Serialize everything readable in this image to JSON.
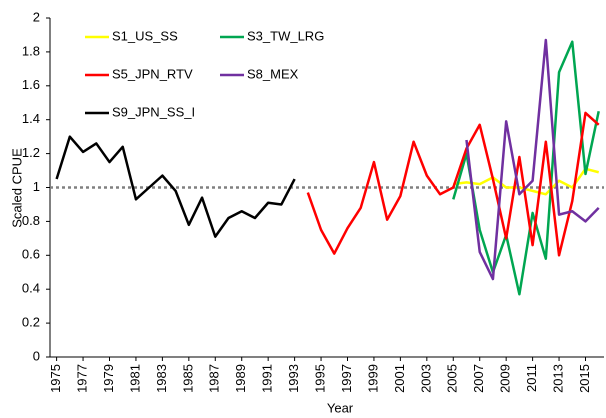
{
  "chart_data": {
    "type": "line",
    "x_label": "Year",
    "y_label": "Scaled CPUE",
    "xlim": [
      1974.5,
      2016.4
    ],
    "ylim": [
      0,
      2
    ],
    "xticks": [
      1975,
      1977,
      1979,
      1981,
      1983,
      1985,
      1987,
      1989,
      1991,
      1993,
      1995,
      1997,
      1999,
      2001,
      2003,
      2005,
      2007,
      2009,
      2011,
      2013,
      2015
    ],
    "yticks": [
      0,
      0.2,
      0.4,
      0.6,
      0.8,
      1,
      1.2,
      1.4,
      1.6,
      1.8,
      2
    ],
    "grid": false,
    "legend": "upper left",
    "reference_line": 1,
    "series": [
      {
        "name": "S1_US_SS",
        "color": "#ffff00",
        "x": [
          2005,
          2006,
          2007,
          2008,
          2009,
          2010,
          2011,
          2012,
          2013,
          2014,
          2015,
          2016
        ],
        "values": [
          1.02,
          1.03,
          1.02,
          1.06,
          1.0,
          1.0,
          0.98,
          0.96,
          1.04,
          1.0,
          1.11,
          1.09
        ]
      },
      {
        "name": "S3_TW_LRG",
        "color": "#00a651",
        "x": [
          2005,
          2006,
          2007,
          2008,
          2009,
          2010,
          2011,
          2012,
          2013,
          2014,
          2015,
          2016
        ],
        "values": [
          0.93,
          1.2,
          0.75,
          0.5,
          0.72,
          0.37,
          0.85,
          0.58,
          1.68,
          1.86,
          1.08,
          1.45
        ]
      },
      {
        "name": "S5_JPN_RTV",
        "color": "#ff0000",
        "x": [
          1994,
          1995,
          1996,
          1997,
          1998,
          1999,
          2000,
          2001,
          2002,
          2003,
          2004,
          2005,
          2006,
          2007,
          2008,
          2009,
          2010,
          2011,
          2012,
          2013,
          2014,
          2015,
          2016
        ],
        "values": [
          0.97,
          0.75,
          0.61,
          0.76,
          0.88,
          1.15,
          0.81,
          0.95,
          1.27,
          1.07,
          0.96,
          1.0,
          1.23,
          1.37,
          1.05,
          0.7,
          1.18,
          0.66,
          1.27,
          0.6,
          0.92,
          1.44,
          1.37
        ]
      },
      {
        "name": "S8_MEX",
        "color": "#7030a0",
        "x": [
          2006,
          2007,
          2008,
          2009,
          2010,
          2011,
          2012,
          2013,
          2014,
          2015,
          2016
        ],
        "values": [
          1.28,
          0.62,
          0.46,
          1.39,
          0.96,
          1.04,
          1.87,
          0.84,
          0.86,
          0.8,
          0.88
        ]
      },
      {
        "name": "S9_JPN_SS_I",
        "color": "#000000",
        "x": [
          1975,
          1976,
          1977,
          1978,
          1979,
          1980,
          1981,
          1982,
          1983,
          1984,
          1985,
          1986,
          1987,
          1988,
          1989,
          1990,
          1991,
          1992,
          1993
        ],
        "values": [
          1.05,
          1.3,
          1.21,
          1.26,
          1.15,
          1.24,
          0.93,
          1.0,
          1.07,
          0.98,
          0.78,
          0.94,
          0.71,
          0.82,
          0.86,
          0.82,
          0.91,
          0.9,
          1.05
        ]
      }
    ]
  }
}
